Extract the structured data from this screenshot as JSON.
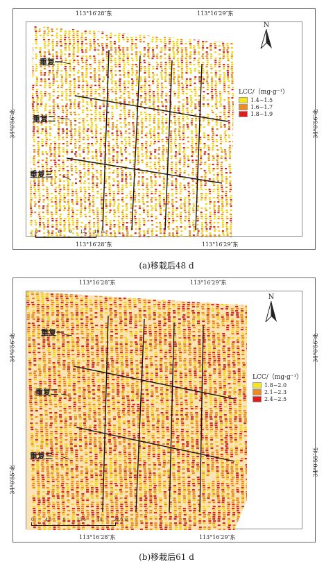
{
  "panel_a": {
    "caption": "(a)移栽后48 d",
    "lon_top_left": "113°16′28″东",
    "lon_top_right": "113°16′29″东",
    "lon_bottom_left": "113°16′28″东",
    "lon_bottom_right": "113°16′29″东",
    "lat_left": "34°0′56″北",
    "lat_right": "34°0′56″北",
    "north": "N",
    "replicates": [
      "重复一",
      "重复二",
      "重复三"
    ],
    "legend": {
      "title": "LCC/（mg·g⁻¹）",
      "items": [
        {
          "label": "1.4~1.5",
          "color": "#f5e51c"
        },
        {
          "label": "1.6~1.7",
          "color": "#f08a1c"
        },
        {
          "label": "1.8~1.9",
          "color": "#e31a1c"
        }
      ]
    },
    "scale_ticks": [
      "0",
      "3",
      "6",
      "9",
      "12",
      "15 m"
    ]
  },
  "panel_b": {
    "caption": "(b)移栽后61 d",
    "lon_top_left": "113°16′28″东",
    "lon_top_right": "113°16′29″东",
    "lon_bottom_left": "113°16′28″东",
    "lon_bottom_right": "113°16′29″东",
    "lat_left_top": "34°0′56″北",
    "lat_left_bottom": "34°0′55″北",
    "lat_right_top": "34°0′56″北",
    "lat_right_bottom": "34°0′55″北",
    "north": "N",
    "replicates": [
      "重复一",
      "重复二",
      "重复三"
    ],
    "legend": {
      "title": "LCC/（mg·g⁻¹）",
      "items": [
        {
          "label": "1.8~2.0",
          "color": "#f5e51c"
        },
        {
          "label": "2.1~2.3",
          "color": "#f08a1c"
        },
        {
          "label": "2.4~2.5",
          "color": "#e31a1c"
        }
      ]
    },
    "scale_ticks": [
      "0",
      "4.5",
      "9",
      "13.5",
      "18",
      "22.5 m"
    ]
  }
}
